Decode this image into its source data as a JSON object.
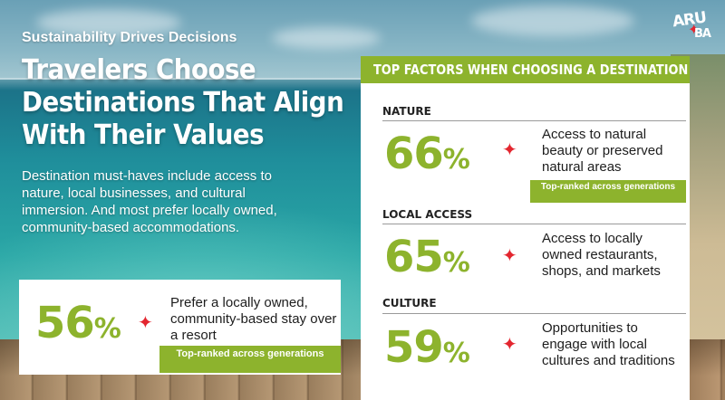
{
  "kicker": "Sustainability Drives Decisions",
  "headline": {
    "line1": "Travelers Choose",
    "line2": "Destinations That Align",
    "line3": "With Their Values"
  },
  "intro": "Destination must-haves include access to nature, local businesses, and cultural immersion. And most prefer locally owned, community-based accommodations.",
  "logo": {
    "part1": "ARU",
    "part2": "BA"
  },
  "left_card": {
    "number": "56",
    "percent_sign": "%",
    "text": "Prefer a locally owned, community-based stay over a resort",
    "badge": "Top-ranked across generations"
  },
  "panel": {
    "header": "TOP FACTORS WHEN CHOOSING A DESTINATION",
    "factors": [
      {
        "label": "NATURE",
        "number": "66",
        "percent_sign": "%",
        "text": "Access to natural beauty or preserved natural areas",
        "badge": "Top-ranked across generations"
      },
      {
        "label": "LOCAL ACCESS",
        "number": "65",
        "percent_sign": "%",
        "text": "Access to locally owned restaurants, shops, and markets"
      },
      {
        "label": "CULTURE",
        "number": "59",
        "percent_sign": "%",
        "text": "Opportunities to engage with local cultures and traditions"
      }
    ]
  },
  "colors": {
    "accent_green": "#8db32d",
    "sparkle_red": "#e3262f"
  }
}
